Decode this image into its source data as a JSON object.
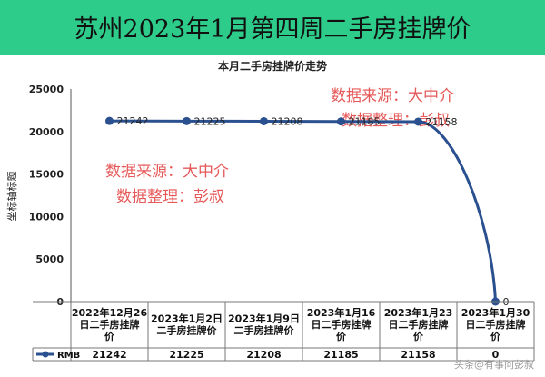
{
  "banner": {
    "title": "苏州2023年1月第四周二手房挂牌价",
    "background": "#2ecc8a"
  },
  "watermarks": {
    "left_line1": "数据来源：大中介",
    "left_line2": "数据整理：彭叔",
    "right_line1": "数据来源：大中介",
    "right_line2": "数据整理：彭叔",
    "corner": "头条@有事问彭叔"
  },
  "series_color": "#2a5090",
  "chart_data": {
    "type": "line",
    "title": "本月二手房挂牌价走势",
    "xlabel": "",
    "ylabel": "坐标轴标题",
    "ylim": [
      0,
      25000
    ],
    "yticks": [
      "0",
      "5000",
      "10000",
      "15000",
      "20000",
      "25000"
    ],
    "categories": [
      [
        "2022年12月26",
        "日二手房挂牌",
        "价"
      ],
      [
        "2023年1月2日",
        "二手房挂牌价"
      ],
      [
        "2023年1月9日",
        "二手房挂牌价"
      ],
      [
        "2023年1月16",
        "日二手房挂牌",
        "价"
      ],
      [
        "2023年1月23",
        "日二手房挂牌",
        "价"
      ],
      [
        "2023年1月30",
        "日二手房挂牌",
        "价"
      ]
    ],
    "series": [
      {
        "name": "RMB",
        "values": [
          21242,
          21225,
          21208,
          21185,
          21158,
          0
        ],
        "labels": [
          "21242",
          "21225",
          "21208",
          "21185",
          "21158",
          "0"
        ]
      }
    ],
    "table_values": [
      "21242",
      "21225",
      "21208",
      "21185",
      "21158",
      "0"
    ],
    "grid": false,
    "legend": "bottom-left-table"
  }
}
